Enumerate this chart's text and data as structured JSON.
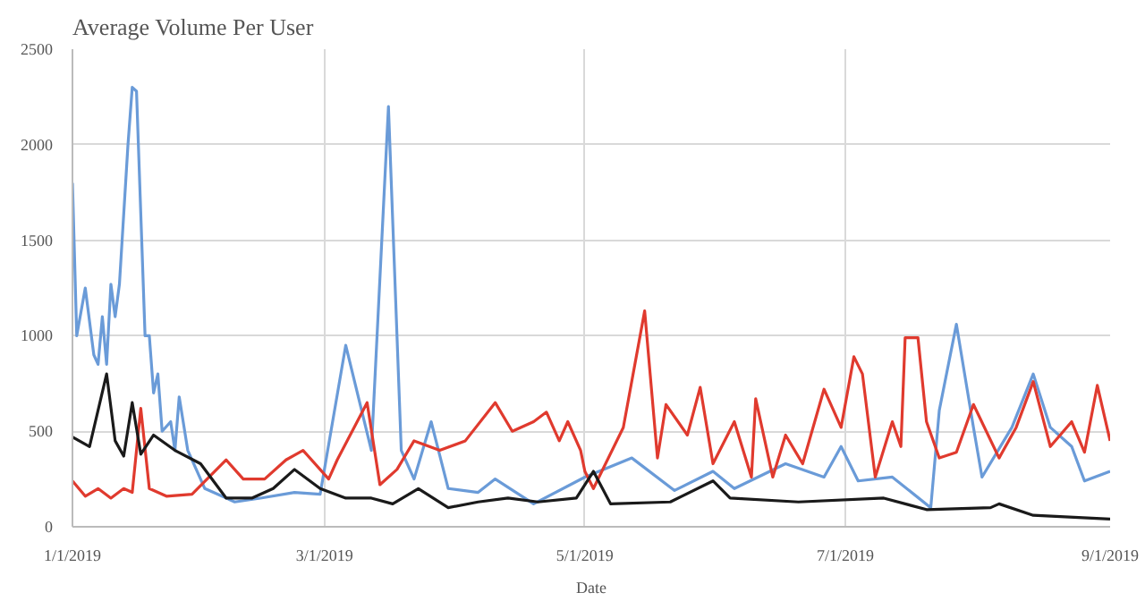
{
  "chart_data": {
    "type": "line",
    "title": "Average Volume Per User",
    "xlabel": "Date",
    "xlim": [
      "2019-01-01",
      "2019-09-01"
    ],
    "xticks": [
      {
        "value": "2019-01-01",
        "label": "1/1/2019"
      },
      {
        "value": "2019-03-01",
        "label": "3/1/2019"
      },
      {
        "value": "2019-05-01",
        "label": "5/1/2019"
      },
      {
        "value": "2019-07-01",
        "label": "7/1/2019"
      },
      {
        "value": "2019-09-01",
        "label": "9/1/2019"
      }
    ],
    "ylim": [
      0,
      2500
    ],
    "yticks": [
      0,
      500,
      1000,
      1500,
      2000,
      2500
    ],
    "grid": true,
    "marker": "none",
    "line_style": "solid",
    "series": [
      {
        "color": "#6a9bd8",
        "x": [
          "2019-01-01",
          "2019-01-02",
          "2019-01-04",
          "2019-01-06",
          "2019-01-07",
          "2019-01-08",
          "2019-01-09",
          "2019-01-10",
          "2019-01-11",
          "2019-01-12",
          "2019-01-14",
          "2019-01-15",
          "2019-01-16",
          "2019-01-18",
          "2019-01-19",
          "2019-01-20",
          "2019-01-21",
          "2019-01-22",
          "2019-01-24",
          "2019-01-25",
          "2019-01-26",
          "2019-01-28",
          "2019-02-01",
          "2019-02-08",
          "2019-02-14",
          "2019-02-22",
          "2019-02-28",
          "2019-03-06",
          "2019-03-12",
          "2019-03-16",
          "2019-03-19",
          "2019-03-22",
          "2019-03-26",
          "2019-03-30",
          "2019-04-06",
          "2019-04-10",
          "2019-04-19",
          "2019-05-01",
          "2019-05-12",
          "2019-05-22",
          "2019-05-31",
          "2019-06-05",
          "2019-06-17",
          "2019-06-26",
          "2019-06-30",
          "2019-07-04",
          "2019-07-12",
          "2019-07-21",
          "2019-07-23",
          "2019-07-27",
          "2019-07-31",
          "2019-08-02",
          "2019-08-09",
          "2019-08-14",
          "2019-08-18",
          "2019-08-23",
          "2019-08-26",
          "2019-09-01"
        ],
        "values": [
          1800,
          1000,
          1250,
          900,
          850,
          1100,
          850,
          1270,
          1100,
          1270,
          2000,
          2300,
          2280,
          1000,
          1000,
          700,
          800,
          500,
          550,
          400,
          680,
          400,
          200,
          130,
          150,
          180,
          170,
          950,
          400,
          2200,
          400,
          250,
          550,
          200,
          180,
          250,
          120,
          260,
          360,
          190,
          290,
          200,
          330,
          260,
          420,
          240,
          260,
          100,
          610,
          1060,
          520,
          260,
          520,
          800,
          520,
          420,
          240,
          290
        ]
      },
      {
        "color": "#e03a2e",
        "x": [
          "2019-01-01",
          "2019-01-04",
          "2019-01-07",
          "2019-01-10",
          "2019-01-13",
          "2019-01-15",
          "2019-01-17",
          "2019-01-19",
          "2019-01-23",
          "2019-01-29",
          "2019-02-06",
          "2019-02-10",
          "2019-02-15",
          "2019-02-20",
          "2019-02-24",
          "2019-03-02",
          "2019-03-04",
          "2019-03-11",
          "2019-03-14",
          "2019-03-18",
          "2019-03-22",
          "2019-03-28",
          "2019-04-03",
          "2019-04-10",
          "2019-04-14",
          "2019-04-19",
          "2019-04-22",
          "2019-04-25",
          "2019-04-27",
          "2019-04-30",
          "2019-05-01",
          "2019-05-03",
          "2019-05-10",
          "2019-05-15",
          "2019-05-18",
          "2019-05-20",
          "2019-05-25",
          "2019-05-28",
          "2019-05-31",
          "2019-06-05",
          "2019-06-09",
          "2019-06-10",
          "2019-06-14",
          "2019-06-17",
          "2019-06-21",
          "2019-06-26",
          "2019-06-30",
          "2019-07-03",
          "2019-07-05",
          "2019-07-08",
          "2019-07-12",
          "2019-07-14",
          "2019-07-15",
          "2019-07-18",
          "2019-07-20",
          "2019-07-23",
          "2019-07-27",
          "2019-07-31",
          "2019-08-06",
          "2019-08-10",
          "2019-08-14",
          "2019-08-18",
          "2019-08-23",
          "2019-08-26",
          "2019-08-29",
          "2019-09-01"
        ],
        "values": [
          240,
          160,
          200,
          150,
          200,
          180,
          620,
          200,
          160,
          170,
          350,
          250,
          250,
          350,
          400,
          250,
          350,
          650,
          220,
          300,
          450,
          400,
          450,
          650,
          500,
          550,
          600,
          450,
          550,
          400,
          290,
          200,
          520,
          1130,
          360,
          640,
          480,
          730,
          330,
          550,
          260,
          670,
          260,
          480,
          330,
          720,
          520,
          890,
          800,
          260,
          550,
          420,
          990,
          990,
          550,
          360,
          390,
          640,
          360,
          520,
          760,
          420,
          550,
          390,
          740,
          450
        ]
      },
      {
        "color": "#1a1a1a",
        "x": [
          "2019-01-01",
          "2019-01-05",
          "2019-01-09",
          "2019-01-11",
          "2019-01-13",
          "2019-01-15",
          "2019-01-17",
          "2019-01-20",
          "2019-01-25",
          "2019-01-31",
          "2019-02-06",
          "2019-02-12",
          "2019-02-17",
          "2019-02-22",
          "2019-02-28",
          "2019-03-06",
          "2019-03-12",
          "2019-03-17",
          "2019-03-23",
          "2019-03-30",
          "2019-04-06",
          "2019-04-13",
          "2019-04-20",
          "2019-04-29",
          "2019-05-03",
          "2019-05-07",
          "2019-05-21",
          "2019-05-31",
          "2019-06-04",
          "2019-06-20",
          "2019-07-10",
          "2019-07-20",
          "2019-08-04",
          "2019-08-06",
          "2019-08-14",
          "2019-09-01"
        ],
        "values": [
          470,
          420,
          800,
          450,
          370,
          650,
          380,
          480,
          400,
          330,
          150,
          150,
          200,
          300,
          200,
          150,
          150,
          120,
          200,
          100,
          130,
          150,
          130,
          150,
          290,
          120,
          130,
          240,
          150,
          130,
          150,
          90,
          100,
          120,
          60,
          40
        ]
      }
    ]
  }
}
